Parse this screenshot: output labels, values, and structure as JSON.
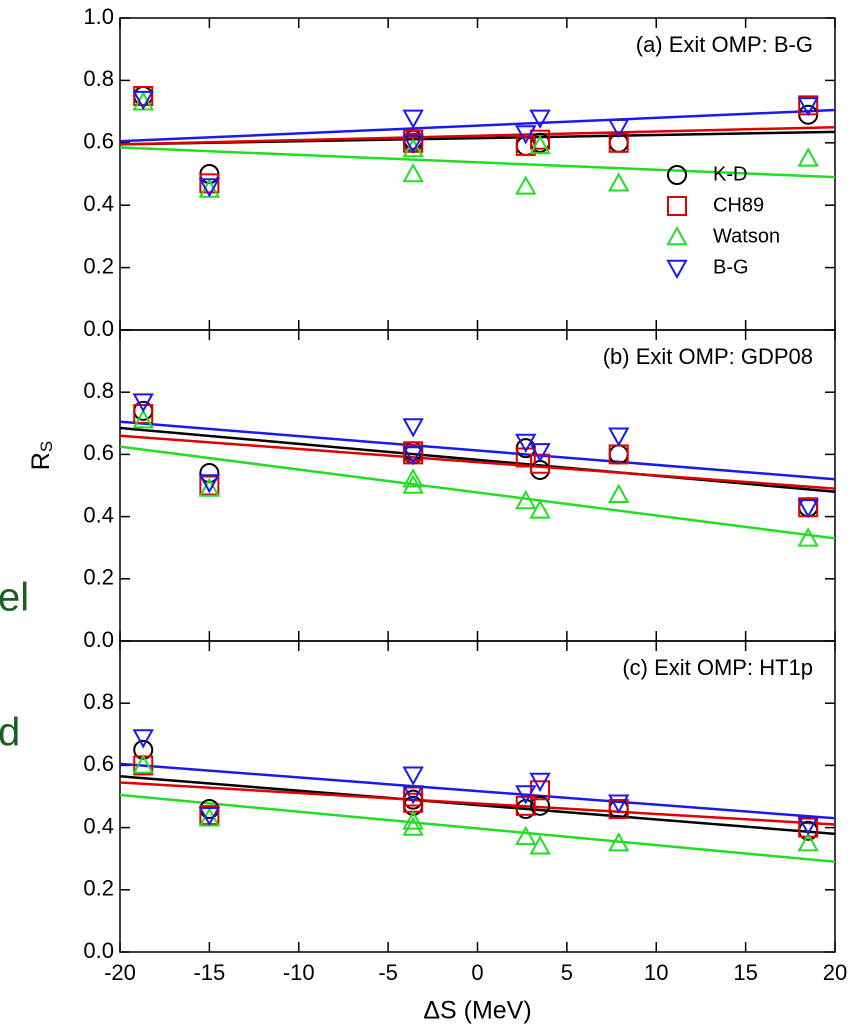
{
  "slide_fragments": [
    "el",
    "d"
  ],
  "chart_data": [
    {
      "type": "scatter",
      "title": "(a) Exit OMP: B-G",
      "x": [
        -18.7,
        -15,
        -3.6,
        -3.6,
        2.7,
        3.5,
        7.9,
        18.5
      ],
      "xlim": [
        -20,
        20
      ],
      "xticks": [
        -20,
        -15,
        -10,
        -5,
        0,
        5,
        10,
        15,
        20
      ],
      "xtick_labels": false,
      "ylim": [
        0,
        1
      ],
      "yticks": [
        {
          "value": 0,
          "label": "0.0"
        },
        0.2,
        0.4,
        0.6,
        0.8,
        {
          "value": 1,
          "label": "1.0"
        }
      ],
      "legend": "right",
      "series": [
        {
          "name": "K-D",
          "color": "#000000",
          "marker": "circle",
          "values": [
            0.75,
            0.5,
            0.61,
            0.6,
            0.59,
            0.6,
            0.6,
            0.69
          ],
          "fit": [
            0.595,
            0.635
          ]
        },
        {
          "name": "CH89",
          "color": "#e00000",
          "marker": "square",
          "values": [
            0.75,
            0.47,
            0.61,
            0.6,
            0.59,
            0.61,
            0.6,
            0.72
          ],
          "fit": [
            0.595,
            0.65
          ]
        },
        {
          "name": "Watson",
          "color": "#22dd22",
          "marker": "triangle-up",
          "values": [
            0.73,
            0.45,
            0.58,
            0.5,
            0.46,
            0.59,
            0.47,
            0.55
          ],
          "fit": [
            0.585,
            0.49
          ]
        },
        {
          "name": "B-G",
          "color": "#1a1aee",
          "marker": "triangle-down",
          "values": [
            0.74,
            0.46,
            0.68,
            0.6,
            0.63,
            0.68,
            0.65,
            0.72
          ],
          "fit": [
            0.605,
            0.705
          ]
        }
      ]
    },
    {
      "type": "scatter",
      "title": "(b) Exit OMP: GDP08",
      "x": [
        -18.7,
        -15,
        -3.6,
        -3.6,
        2.7,
        3.5,
        7.9,
        18.5
      ],
      "xlim": [
        -20,
        20
      ],
      "xticks": [
        -20,
        -15,
        -10,
        -5,
        0,
        5,
        10,
        15,
        20
      ],
      "xtick_labels": false,
      "ylim": [
        0,
        1
      ],
      "yticks": [
        {
          "value": 0,
          "label": "0.0"
        },
        0.2,
        0.4,
        0.6,
        0.8
      ],
      "ylabel": "R",
      "ylabel_subscript": "S",
      "series": [
        {
          "color": "#000000",
          "marker": "circle",
          "values": [
            0.74,
            0.54,
            0.61,
            0.6,
            0.62,
            0.55,
            0.6,
            0.43
          ],
          "fit": [
            0.685,
            0.48
          ]
        },
        {
          "color": "#e00000",
          "marker": "square",
          "values": [
            0.73,
            0.5,
            0.61,
            0.6,
            0.59,
            0.57,
            0.6,
            0.43
          ],
          "fit": [
            0.66,
            0.49
          ]
        },
        {
          "color": "#22dd22",
          "marker": "triangle-up",
          "values": [
            0.71,
            0.49,
            0.52,
            0.5,
            0.45,
            0.42,
            0.47,
            0.33
          ],
          "fit": [
            0.625,
            0.33
          ]
        },
        {
          "color": "#1a1aee",
          "marker": "triangle-down",
          "values": [
            0.77,
            0.51,
            0.69,
            0.6,
            0.64,
            0.61,
            0.66,
            0.43
          ],
          "fit": [
            0.705,
            0.52
          ]
        }
      ]
    },
    {
      "type": "scatter",
      "title": "(c) Exit OMP: HT1p",
      "x": [
        -18.7,
        -15,
        -3.6,
        -3.6,
        2.7,
        3.5,
        7.9,
        18.5
      ],
      "xlim": [
        -20,
        20
      ],
      "xticks": [
        -20,
        -15,
        -10,
        -5,
        0,
        5,
        10,
        15,
        20
      ],
      "xtick_labels": true,
      "xlabel": "ΔS (MeV)",
      "ylim": [
        0,
        1
      ],
      "yticks": [
        {
          "value": 0,
          "label": "0.0"
        },
        0.2,
        0.4,
        0.6,
        0.8
      ],
      "series": [
        {
          "color": "#000000",
          "marker": "circle",
          "values": [
            0.65,
            0.46,
            0.49,
            0.47,
            0.46,
            0.47,
            0.46,
            0.39
          ],
          "fit": [
            0.565,
            0.38
          ]
        },
        {
          "color": "#e00000",
          "marker": "square",
          "values": [
            0.6,
            0.44,
            0.48,
            0.5,
            0.47,
            0.52,
            0.46,
            0.4
          ],
          "fit": [
            0.545,
            0.41
          ]
        },
        {
          "color": "#22dd22",
          "marker": "triangle-up",
          "values": [
            0.6,
            0.43,
            0.42,
            0.4,
            0.37,
            0.34,
            0.35,
            0.35
          ],
          "fit": [
            0.505,
            0.29
          ]
        },
        {
          "color": "#1a1aee",
          "marker": "triangle-down",
          "values": [
            0.69,
            0.44,
            0.57,
            0.51,
            0.51,
            0.55,
            0.48,
            0.41
          ],
          "fit": [
            0.605,
            0.43
          ]
        }
      ]
    }
  ]
}
